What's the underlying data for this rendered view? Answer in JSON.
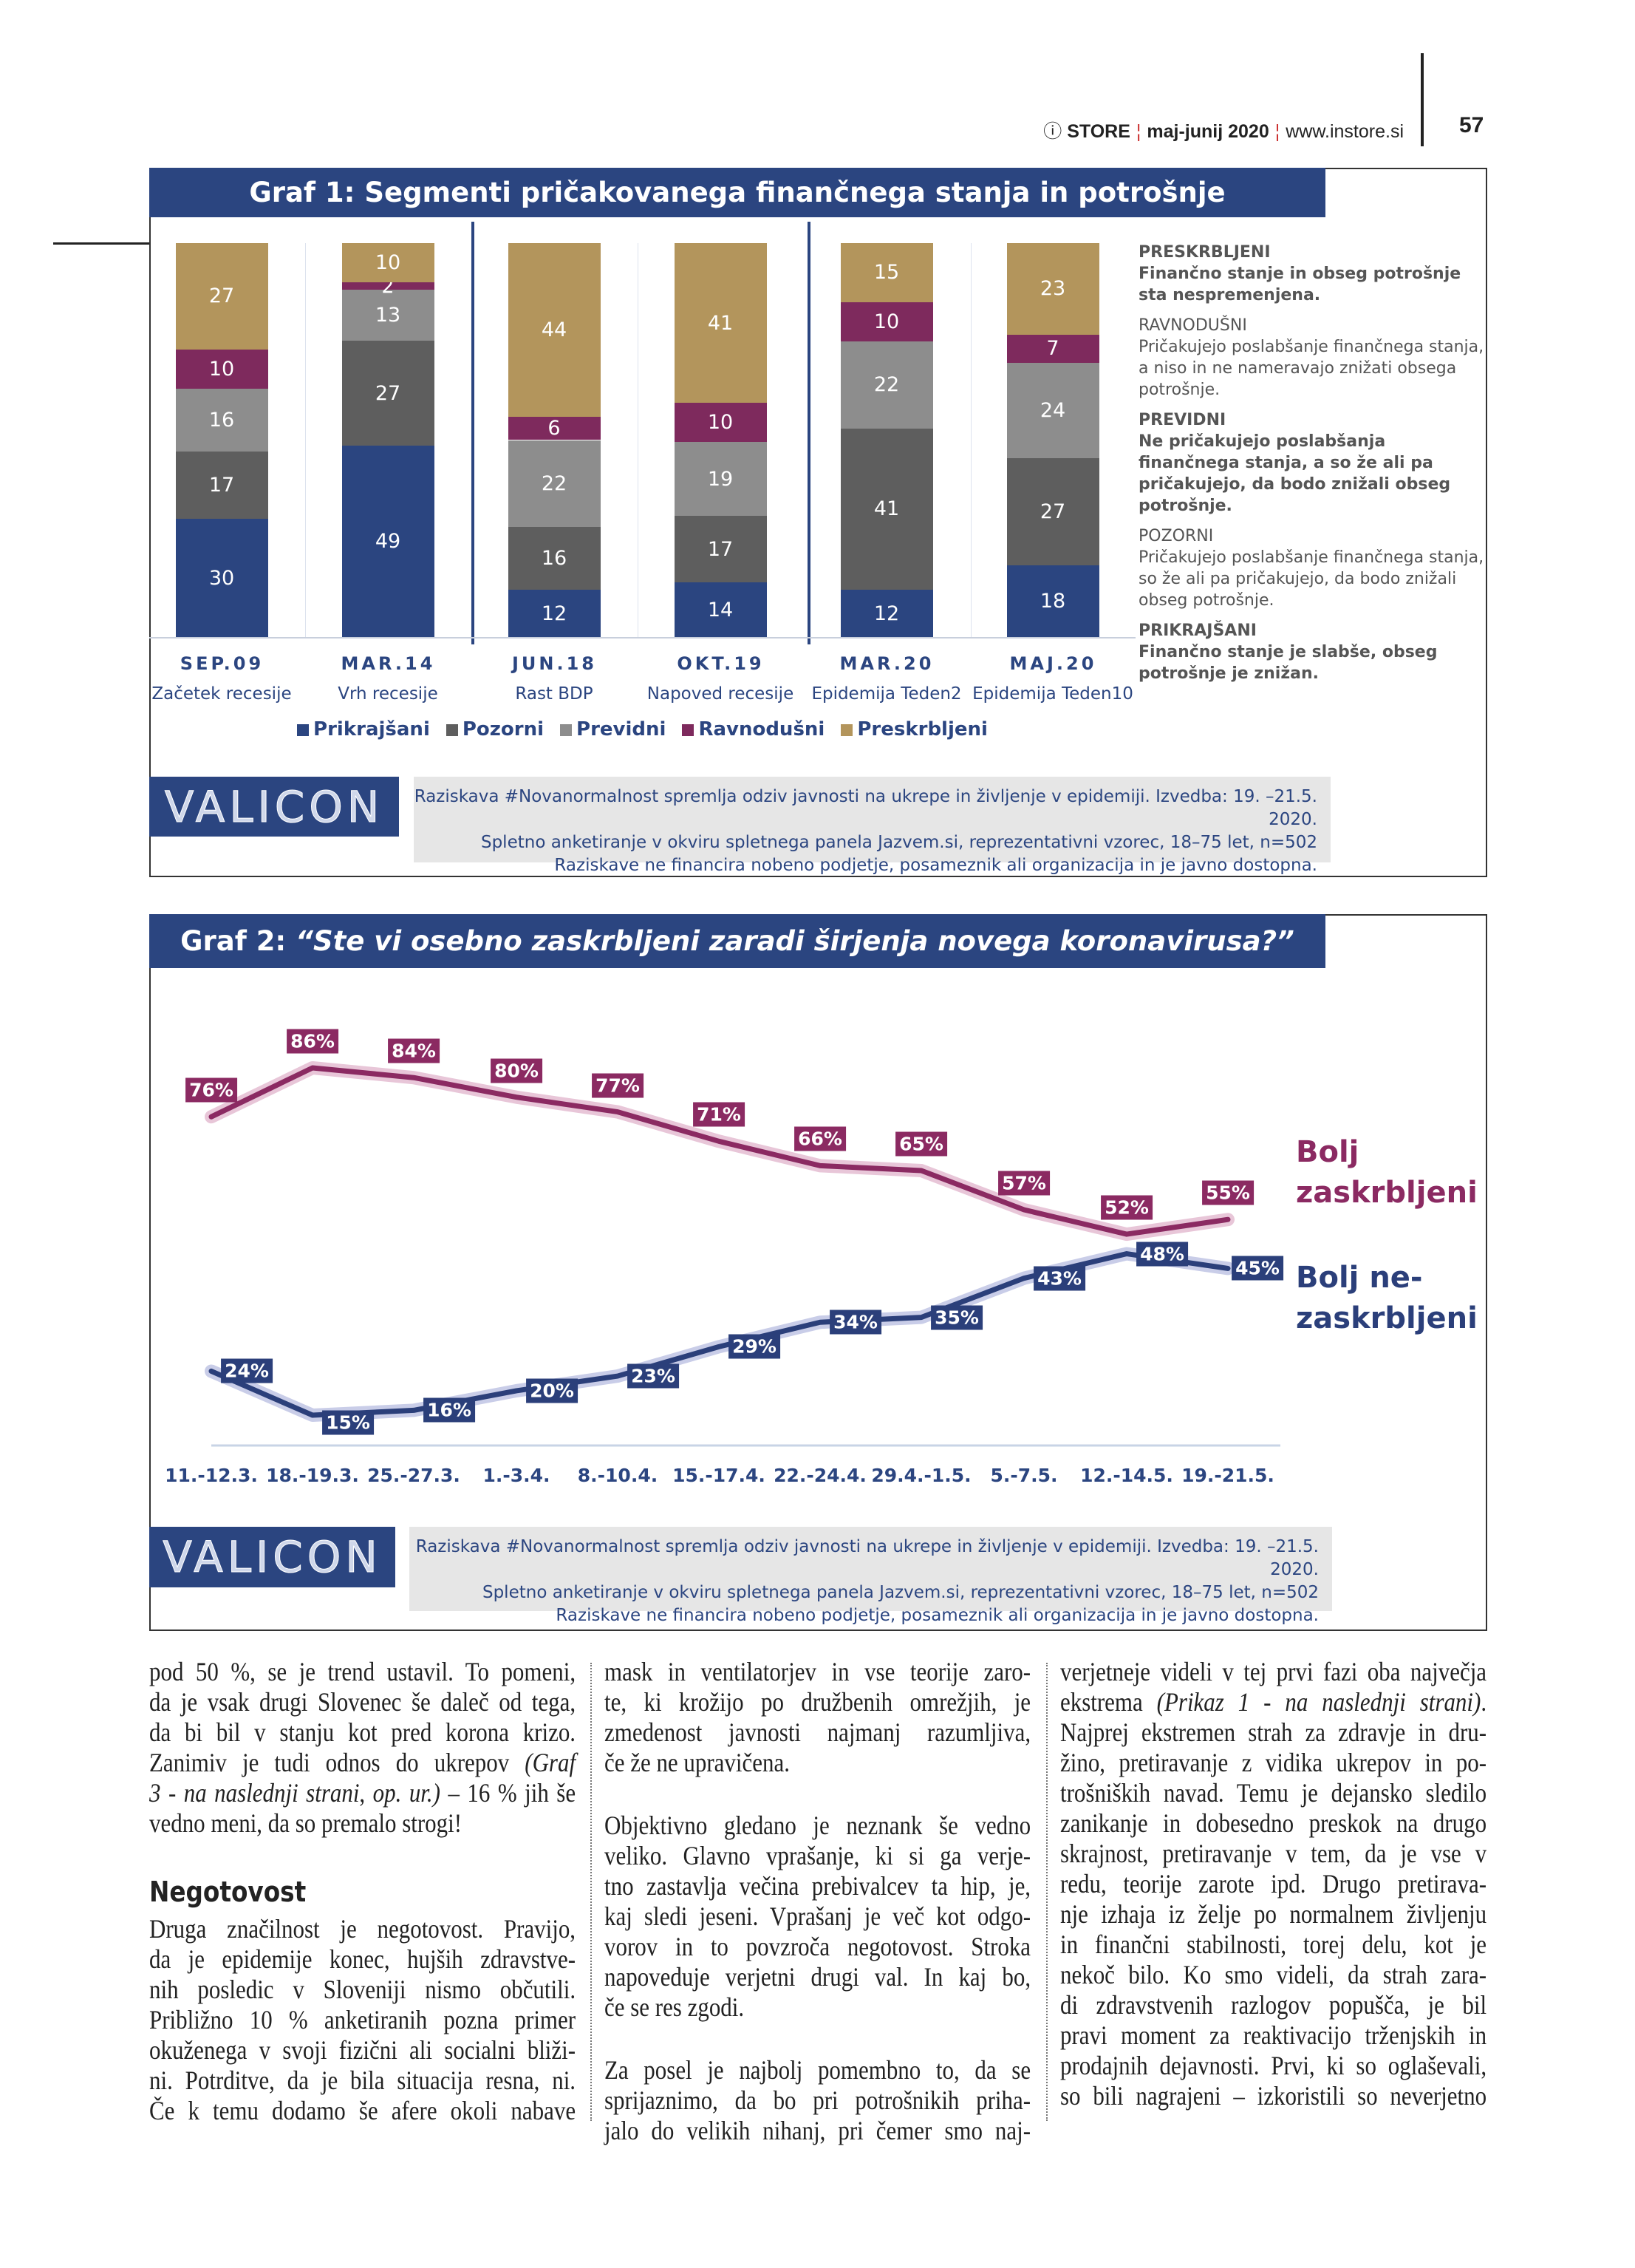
{
  "header": {
    "brand_mark": "ⓘ",
    "brand": "STORE",
    "issue": "maj-junij 2020",
    "url": "www.instore.si",
    "page_number": "57"
  },
  "graf1": {
    "title": "Graf 1: Segmenti pričakovanega finančnega stanja in potrošnje",
    "chart_data": {
      "type": "bar",
      "stacked": true,
      "categories": [
        "SEP.09",
        "MAR.14",
        "JUN.18",
        "OKT.19",
        "MAR.20",
        "MAJ.20"
      ],
      "category_sublabels": [
        "Začetek recesije",
        "Vrh recesije",
        "Rast BDP",
        "Napoved recesije",
        "Epidemija Teden2",
        "Epidemija Teden10"
      ],
      "series": [
        {
          "name": "Prikrajšani",
          "color": "#2b4580",
          "values": [
            30,
            49,
            12,
            14,
            12,
            18
          ]
        },
        {
          "name": "Pozorni",
          "color": "#5e5e5e",
          "values": [
            17,
            27,
            16,
            17,
            41,
            27
          ]
        },
        {
          "name": "Previdni",
          "color": "#8d8d8d",
          "values": [
            16,
            13,
            22,
            19,
            22,
            24
          ]
        },
        {
          "name": "Ravnodušni",
          "color": "#7e2a5d",
          "values": [
            10,
            2,
            6,
            10,
            10,
            7
          ]
        },
        {
          "name": "Preskrbljeni",
          "color": "#b3955c",
          "values": [
            27,
            10,
            44,
            41,
            15,
            23
          ]
        }
      ],
      "legend": "bottom"
    },
    "definitions": [
      {
        "name": "PRESKRBLJENI",
        "text": "Finančno stanje in obseg potrošnje sta nespremenjena.",
        "bold": true
      },
      {
        "name": "RAVNODUŠNI",
        "text": "Pričakujejo poslabšanje finančnega stanja, a niso in ne nameravajo znižati obsega potrošnje.",
        "bold": false
      },
      {
        "name": "PREVIDNI",
        "text": "Ne pričakujejo poslabšanja finančnega stanja, a so že ali pa pričakujejo, da bodo znižali obseg potrošnje.",
        "bold": true
      },
      {
        "name": "POZORNI",
        "text": "Pričakujejo poslabšanje finančnega stanja, so že ali pa pričakujejo, da bodo znižali obseg potrošnje.",
        "bold": false
      },
      {
        "name": "PRIKRAJŠANI",
        "text": "Finančno stanje je slabše, obseg potrošnje je znižan.",
        "bold": true
      }
    ],
    "logo": "VALICON",
    "footer": [
      "Raziskava #Novanormalnost spremlja odziv javnosti na ukrepe in življenje v epidemiji. Izvedba: 19. –21.5. 2020.",
      "Spletno anketiranje v okviru spletnega panela Jazvem.si, reprezentativni vzorec, 18–75 let, n=502",
      "Raziskave ne financira nobeno podjetje, posameznik ali organizacija in je javno dostopna."
    ]
  },
  "graf2": {
    "title_prefix": "Graf 2: ",
    "title_question": "“Ste vi osebno zaskrbljeni zaradi širjenja novega koronavirusa?”",
    "chart_data": {
      "type": "line",
      "x": [
        "11.-12.3.",
        "18.-19.3.",
        "25.-27.3.",
        "1.-3.4.",
        "8.-10.4.",
        "15.-17.4.",
        "22.-24.4.",
        "29.4.-1.5.",
        "5.-7.5.",
        "12.-14.5.",
        "19.-21.5."
      ],
      "series": [
        {
          "name": "Bolj zaskrbljeni",
          "color": "#8b2a62",
          "values": [
            76,
            86,
            84,
            80,
            77,
            71,
            66,
            65,
            57,
            52,
            55
          ]
        },
        {
          "name": "Bolj ne-zaskrbljeni",
          "color": "#2b3f7a",
          "values": [
            24,
            15,
            16,
            20,
            23,
            29,
            34,
            35,
            43,
            48,
            45
          ]
        }
      ],
      "value_suffix": "%",
      "grid": false
    },
    "side_labels": [
      [
        "Bolj",
        "zaskrbljeni"
      ],
      [
        "Bolj ne-",
        "zaskrbljeni"
      ]
    ],
    "logo": "VALICON",
    "footer": [
      "Raziskava #Novanormalnost spremlja odziv javnosti na ukrepe in življenje v epidemiji. Izvedba: 19. –21.5. 2020.",
      "Spletno anketiranje v okviru spletnega panela Jazvem.si, reprezentativni vzorec, 18–75 let, n=502",
      "Raziskave ne financira nobeno podjetje, posameznik ali organizacija in je javno dostopna."
    ]
  },
  "article": {
    "columns": [
      [
        [
          "pod 50 %, se je trend ustavil. To pomeni,"
        ],
        [
          "da je vsak drugi Slovenec še daleč od tega,"
        ],
        [
          "da bi bil v stanju kot pred korona krizo."
        ],
        [
          "Zanimiv je tudi odnos do ukrepov ",
          {
            "i": "(Graf"
          }
        ],
        [
          {
            "i": "3 - na naslednji strani"
          },
          ", ",
          {
            "i": "op. ur.)"
          },
          " – 16 % jih še"
        ],
        [
          "vedno meni, da so premalo strogi!",
          "/last"
        ],
        {
          "heading": "Negotovost"
        },
        [
          "Druga značilnost je negotovost. Pravijo,"
        ],
        [
          "da je epidemije konec, hujših zdravstve-"
        ],
        [
          "nih posledic v Sloveniji nismo občutili."
        ],
        [
          "Približno 10 % anketiranih pozna primer"
        ],
        [
          "okuženega v svoji fizični ali socialni bliži-"
        ],
        [
          "ni. Potrditve, da je bila situacija resna, ni."
        ],
        [
          "Če k temu dodamo še afere okoli nabave"
        ]
      ],
      [
        [
          "mask in ventilatorjev in vse teorije zaro-"
        ],
        [
          "te, ki krožijo po družbenih omrežjih, je"
        ],
        [
          "zmedenost javnosti najmanj razumljiva,"
        ],
        [
          "če že ne upravičena.",
          "/last"
        ],
        {
          "gap": true
        },
        [
          "Objektivno gledano je neznank še vedno"
        ],
        [
          "veliko. Glavno vprašanje, ki si ga verje-"
        ],
        [
          "tno zastavlja večina prebivalcev ta hip, je,"
        ],
        [
          "kaj sledi jeseni. Vprašanj je več kot odgo-"
        ],
        [
          "vorov in to povzroča negotovost. Stroka"
        ],
        [
          "napoveduje verjetni drugi val. In kaj bo,"
        ],
        [
          "če se res zgodi.",
          "/last"
        ],
        {
          "gap": true
        },
        [
          "Za posel je najbolj pomembno to, da se"
        ],
        [
          "sprijaznimo, da bo pri potrošnikih priha-"
        ],
        [
          "jalo do velikih nihanj, pri čemer smo naj-"
        ]
      ],
      [
        [
          "verjetneje videli v tej prvi fazi oba največja"
        ],
        [
          "ekstrema ",
          {
            "i": "(Prikaz 1 - na naslednji strani)"
          },
          "."
        ],
        [
          "Najprej ekstremen strah za zdravje in dru-"
        ],
        [
          "žino, pretiravanje z vidika ukrepov in po-"
        ],
        [
          "trošniških navad. Temu je dejansko sledilo"
        ],
        [
          "zanikanje in dobesedno preskok na drugo"
        ],
        [
          "skrajnost, pretiravanje v tem, da je vse v"
        ],
        [
          "redu, teorije zarote ipd. Drugo pretirava-"
        ],
        [
          "nje izhaja iz želje po normalnem življenju"
        ],
        [
          "in finančni stabilnosti, torej delu, kot je"
        ],
        [
          "nekoč bilo. Ko smo videli, da strah zara-"
        ],
        [
          "di zdravstvenih razlogov popušča, je bil"
        ],
        [
          "pravi moment za reaktivacijo trženjskih in"
        ],
        [
          "prodajnih dejavnosti. Prvi, ki so oglaševali,"
        ],
        [
          "so bili nagrajeni – izkoristili so neverjetno"
        ]
      ]
    ]
  }
}
